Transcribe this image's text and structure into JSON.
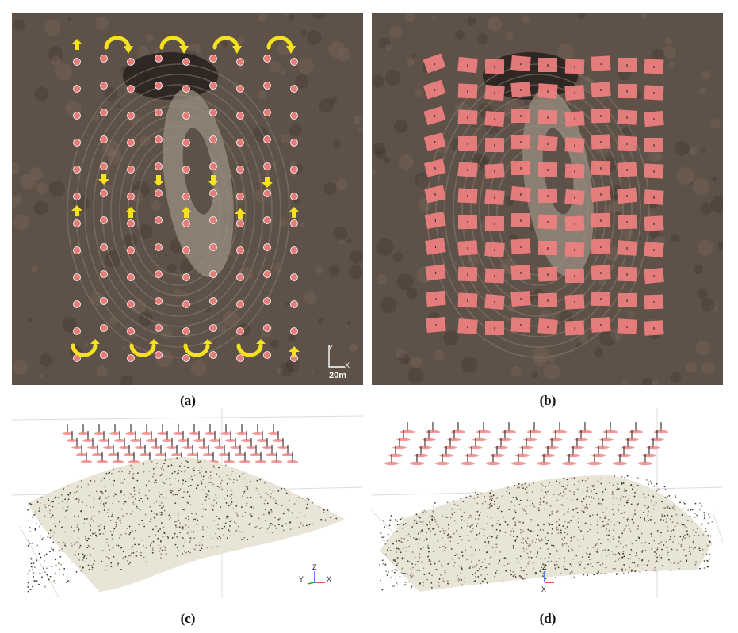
{
  "captions": {
    "a": "(a)",
    "b": "(b)",
    "c": "(c)",
    "d": "(d)"
  },
  "scale_bar": {
    "label": "20m",
    "y_axis": "Y",
    "x_axis": "X"
  },
  "axes_c": {
    "x": "X",
    "y": "Y",
    "z": "Z"
  },
  "axes_d": {
    "x": "X",
    "z": "Z"
  },
  "colors": {
    "terrain": "#5e5248",
    "terrain_light": "#8a7a6c",
    "waypoint": "#e77b78",
    "footprint": "#f08080",
    "arrow": "#f5e21c",
    "point_cloud": "#a79f88"
  }
}
